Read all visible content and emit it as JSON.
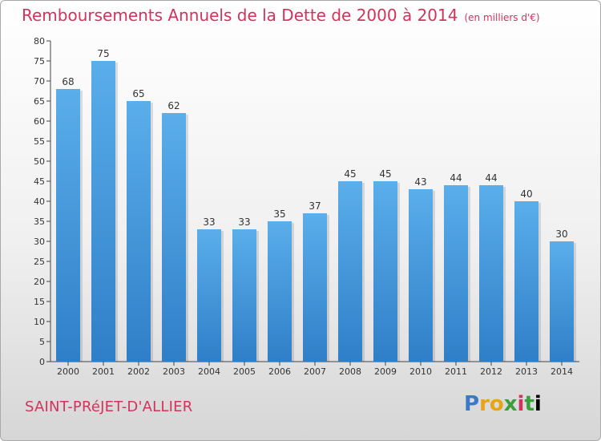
{
  "header": {
    "title": "Remboursements Annuels de la Dette de 2000 à 2014",
    "unit": "(en milliers d'€)"
  },
  "footer": {
    "place": "SAINT-PRéJET-D'ALLIER",
    "logo_letters": [
      "P",
      "r",
      "o",
      "x",
      "i",
      "t",
      "i"
    ]
  },
  "chart_data": {
    "type": "bar",
    "title": "Remboursements Annuels de la Dette de 2000 à 2014",
    "subtitle": "(en milliers d'€)",
    "xlabel": "",
    "ylabel": "",
    "categories": [
      "2000",
      "2001",
      "2002",
      "2003",
      "2004",
      "2005",
      "2006",
      "2007",
      "2008",
      "2009",
      "2010",
      "2011",
      "2012",
      "2013",
      "2014"
    ],
    "values": [
      68,
      75,
      65,
      62,
      33,
      33,
      35,
      37,
      45,
      45,
      43,
      44,
      44,
      40,
      30
    ],
    "ylim": [
      0,
      80
    ],
    "yticks": [
      0,
      5,
      10,
      15,
      20,
      25,
      30,
      35,
      40,
      45,
      50,
      55,
      60,
      65,
      70,
      75,
      80
    ],
    "grid": false,
    "bar_color": "#3f8fd6"
  }
}
